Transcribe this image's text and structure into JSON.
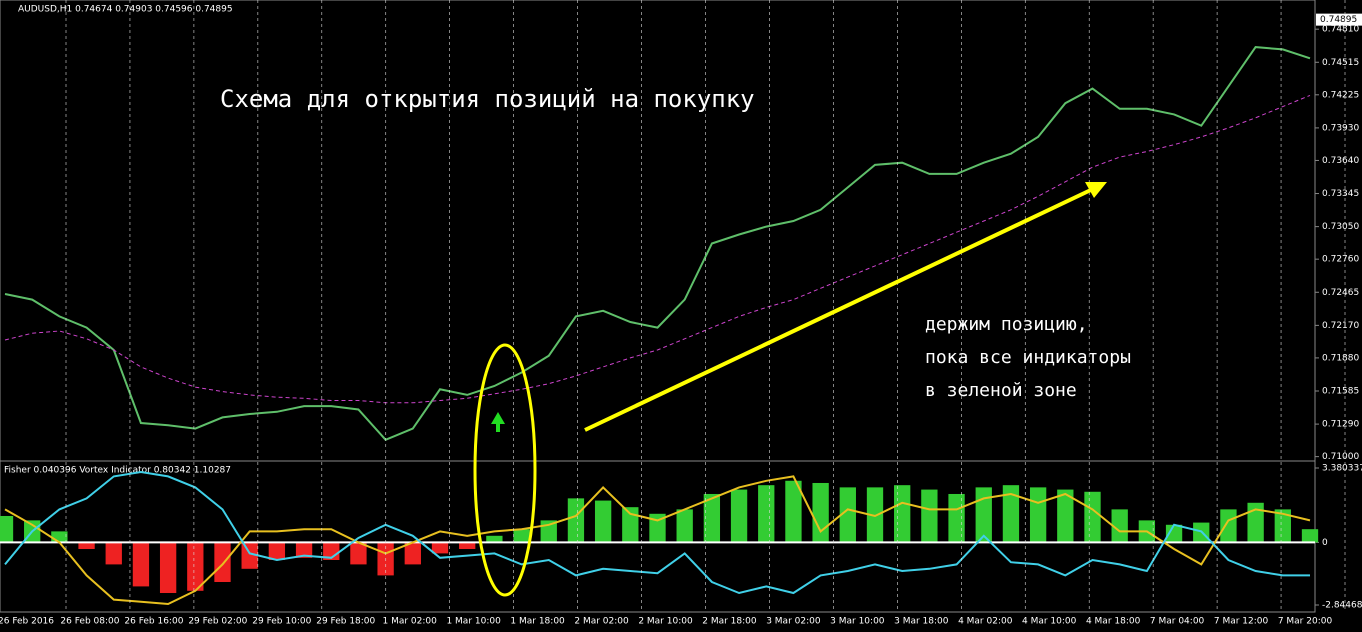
{
  "chart_data": [
    {
      "type": "line",
      "title": "AUDUSD,H1  0.74674 0.74903 0.74596 0.74895",
      "annotation": "Схема для открытия позиций на покупку",
      "note_lines": [
        "держим позицию,",
        "пока все индикаторы",
        "в зеленой зоне"
      ],
      "last_price": {
        "value": 0.74895,
        "label": "0.74895"
      },
      "ylim": [
        0.7097,
        0.7507
      ],
      "yticks": [
        {
          "value": 0.7481,
          "label": "0.74810"
        },
        {
          "value": 0.74515,
          "label": "0.74515"
        },
        {
          "value": 0.74225,
          "label": "0.74225"
        },
        {
          "value": 0.7393,
          "label": "0.73930"
        },
        {
          "value": 0.7364,
          "label": "0.73640"
        },
        {
          "value": 0.73345,
          "label": "0.73345"
        },
        {
          "value": 0.7305,
          "label": "0.73050"
        },
        {
          "value": 0.7276,
          "label": "0.72760"
        },
        {
          "value": 0.72465,
          "label": "0.72465"
        },
        {
          "value": 0.7217,
          "label": "0.72170"
        },
        {
          "value": 0.7188,
          "label": "0.71880"
        },
        {
          "value": 0.71585,
          "label": "0.71585"
        },
        {
          "value": 0.7129,
          "label": "0.71290"
        },
        {
          "value": 0.71,
          "label": "0.71000"
        }
      ],
      "series": [
        {
          "color": "#5fbf6a",
          "values": [
            0.7245,
            0.724,
            0.7225,
            0.7215,
            0.7195,
            0.713,
            0.7128,
            0.7125,
            0.7135,
            0.7138,
            0.714,
            0.7145,
            0.7145,
            0.7142,
            0.7115,
            0.7125,
            0.716,
            0.7155,
            0.7163,
            0.7175,
            0.719,
            0.7225,
            0.723,
            0.722,
            0.7215,
            0.724,
            0.729,
            0.7298,
            0.7305,
            0.731,
            0.732,
            0.734,
            0.736,
            0.7362,
            0.7352,
            0.7352,
            0.7362,
            0.737,
            0.7385,
            0.7415,
            0.7428,
            0.741,
            0.741,
            0.7405,
            0.7395,
            0.743,
            0.7465,
            0.7463,
            0.7455
          ]
        },
        {
          "color": "#cc44cc",
          "values": [
            0.7204,
            0.721,
            0.7212,
            0.7205,
            0.7195,
            0.718,
            0.717,
            0.7162,
            0.7158,
            0.7155,
            0.7153,
            0.7152,
            0.715,
            0.715,
            0.7148,
            0.7148,
            0.715,
            0.7152,
            0.7156,
            0.716,
            0.7165,
            0.7172,
            0.718,
            0.7188,
            0.7195,
            0.7205,
            0.7215,
            0.7225,
            0.7233,
            0.724,
            0.725,
            0.726,
            0.727,
            0.728,
            0.729,
            0.73,
            0.731,
            0.732,
            0.7332,
            0.7345,
            0.7358,
            0.7367,
            0.7372,
            0.7378,
            0.7385,
            0.7393,
            0.7402,
            0.7412,
            0.7422
          ]
        }
      ]
    },
    {
      "type": "histogram-lines",
      "title": "Fisher 0.040396  Vortex Indicator 0.80342 1.10287",
      "ylim": [
        -3.163,
        3.653
      ],
      "yticks": [
        3.380337,
        0,
        -2.844685
      ],
      "pos_color": "#33cc33",
      "neg_color": "#ee2222",
      "bars": [
        1.2,
        1.0,
        0.5,
        -0.3,
        -1.0,
        -2.0,
        -2.3,
        -2.2,
        -1.8,
        -1.2,
        -0.8,
        -0.7,
        -0.8,
        -1.0,
        -1.5,
        -1.0,
        -0.5,
        -0.3,
        0.3,
        0.6,
        1.0,
        2.0,
        1.9,
        1.6,
        1.3,
        1.5,
        2.2,
        2.4,
        2.6,
        2.8,
        2.7,
        2.5,
        2.5,
        2.6,
        2.4,
        2.2,
        2.5,
        2.6,
        2.5,
        2.4,
        2.3,
        1.5,
        1.0,
        0.8,
        0.9,
        1.5,
        1.8,
        1.5,
        0.6
      ],
      "series": [
        {
          "color": "#e8c020",
          "values": [
            1.5,
            0.8,
            0.0,
            -1.5,
            -2.6,
            -2.7,
            -2.8,
            -2.2,
            -1.0,
            0.5,
            0.5,
            0.6,
            0.6,
            0.0,
            -0.5,
            0.0,
            0.5,
            0.3,
            0.5,
            0.6,
            0.8,
            1.2,
            2.5,
            1.3,
            1.0,
            1.5,
            2.0,
            2.5,
            2.8,
            3.0,
            0.5,
            1.5,
            1.2,
            1.8,
            1.5,
            1.5,
            2.0,
            2.2,
            1.8,
            2.2,
            1.5,
            0.5,
            0.5,
            -0.3,
            -1.0,
            1.0,
            1.5,
            1.3,
            1.0
          ]
        },
        {
          "color": "#40d0e8",
          "values": [
            -1.0,
            0.5,
            1.5,
            2.0,
            3.0,
            3.2,
            3.0,
            2.5,
            1.5,
            -0.5,
            -0.8,
            -0.6,
            -0.7,
            0.2,
            0.8,
            0.3,
            -0.7,
            -0.6,
            -0.5,
            -1.0,
            -0.8,
            -1.5,
            -1.2,
            -1.3,
            -1.4,
            -0.5,
            -1.8,
            -2.3,
            -2.0,
            -2.3,
            -1.5,
            -1.3,
            -1.0,
            -1.3,
            -1.2,
            -1.0,
            0.3,
            -0.9,
            -1.0,
            -1.5,
            -0.8,
            -1.0,
            -1.3,
            0.8,
            0.5,
            -0.8,
            -1.3,
            -1.5,
            -1.5
          ]
        }
      ],
      "x_labels": [
        "26 Feb 2016",
        "26 Feb 08:00",
        "26 Feb 16:00",
        "29 Feb 02:00",
        "29 Feb 10:00",
        "29 Feb 18:00",
        "1 Mar 02:00",
        "1 Mar 10:00",
        "1 Mar 18:00",
        "2 Mar 02:00",
        "2 Mar 10:00",
        "2 Mar 18:00",
        "3 Mar 02:00",
        "3 Mar 10:00",
        "3 Mar 18:00",
        "4 Mar 02:00",
        "4 Mar 10:00",
        "4 Mar 18:00",
        "7 Mar 04:00",
        "7 Mar 12:00",
        "7 Mar 20:00"
      ]
    }
  ]
}
